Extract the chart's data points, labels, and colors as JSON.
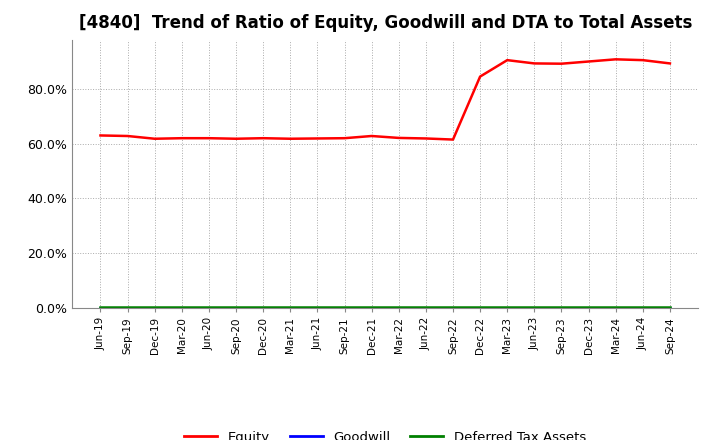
{
  "title": "[4840]  Trend of Ratio of Equity, Goodwill and DTA to Total Assets",
  "x_labels": [
    "Jun-19",
    "Sep-19",
    "Dec-19",
    "Mar-20",
    "Jun-20",
    "Sep-20",
    "Dec-20",
    "Mar-21",
    "Jun-21",
    "Sep-21",
    "Dec-21",
    "Mar-22",
    "Jun-22",
    "Sep-22",
    "Dec-22",
    "Mar-23",
    "Jun-23",
    "Sep-23",
    "Dec-23",
    "Mar-24",
    "Jun-24",
    "Sep-24"
  ],
  "equity": [
    0.63,
    0.628,
    0.618,
    0.62,
    0.62,
    0.618,
    0.62,
    0.618,
    0.619,
    0.62,
    0.628,
    0.621,
    0.619,
    0.615,
    0.845,
    0.905,
    0.893,
    0.892,
    0.9,
    0.908,
    0.905,
    0.893
  ],
  "goodwill": [
    0.0,
    0.0,
    0.0,
    0.0,
    0.0,
    0.0,
    0.0,
    0.0,
    0.0,
    0.0,
    0.0,
    0.0,
    0.0,
    0.0,
    0.0,
    0.0,
    0.0,
    0.0,
    0.0,
    0.0,
    0.0,
    0.0
  ],
  "dta": [
    0.005,
    0.005,
    0.005,
    0.005,
    0.005,
    0.005,
    0.005,
    0.005,
    0.005,
    0.005,
    0.005,
    0.005,
    0.005,
    0.005,
    0.005,
    0.005,
    0.005,
    0.005,
    0.005,
    0.005,
    0.005,
    0.005
  ],
  "equity_color": "#FF0000",
  "goodwill_color": "#0000FF",
  "dta_color": "#008000",
  "ylim": [
    0.0,
    0.98
  ],
  "yticks": [
    0.0,
    0.2,
    0.4,
    0.6,
    0.8
  ],
  "background_color": "#FFFFFF",
  "plot_bg_color": "#FFFFFF",
  "grid_color": "#AAAAAA",
  "title_fontsize": 12,
  "legend_labels": [
    "Equity",
    "Goodwill",
    "Deferred Tax Assets"
  ]
}
